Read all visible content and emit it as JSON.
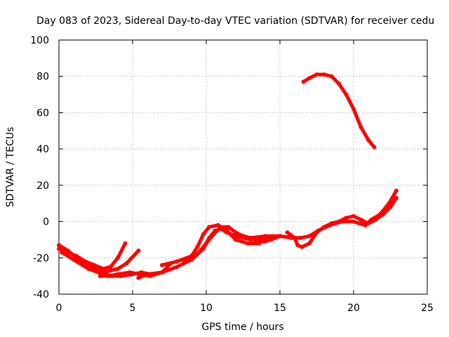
{
  "chart_data": {
    "type": "line",
    "title": "Day 083 of 2023, Sidereal Day-to-day VTEC variation (SDTVAR) for receiver cedu",
    "xlabel": "GPS time / hours",
    "ylabel": "SDTVAR / TECUs",
    "xlim": [
      0,
      25
    ],
    "ylim": [
      -40,
      100
    ],
    "xticks": [
      0,
      5,
      10,
      15,
      20,
      25
    ],
    "yticks": [
      -40,
      -20,
      0,
      20,
      40,
      60,
      80,
      100
    ],
    "grid": true,
    "color": "#ff0000",
    "series": [
      {
        "name": "s1",
        "x": [
          0.0,
          0.6,
          1.2,
          1.8,
          2.4,
          3.0,
          3.5,
          4.0,
          4.5
        ],
        "y": [
          -15,
          -17,
          -19,
          -22,
          -24,
          -26,
          -25,
          -20,
          -12
        ]
      },
      {
        "name": "s2",
        "x": [
          0.0,
          0.6,
          1.2,
          1.8,
          2.4,
          3.0,
          3.5,
          4.0,
          4.6,
          5.4
        ],
        "y": [
          -13,
          -16,
          -20,
          -23,
          -26,
          -28,
          -27,
          -26,
          -23,
          -16
        ]
      },
      {
        "name": "s3",
        "x": [
          0.2,
          1.0,
          2.0,
          3.0,
          3.6,
          4.2,
          5.0,
          5.6,
          6.2
        ],
        "y": [
          -17,
          -21,
          -26,
          -29,
          -30,
          -30,
          -29,
          -28,
          -29
        ]
      },
      {
        "name": "s4",
        "x": [
          2.8,
          3.4,
          4.0,
          4.8,
          5.5,
          6.2,
          7.0,
          7.6
        ],
        "y": [
          -30,
          -30,
          -29,
          -28,
          -29,
          -30,
          -28,
          -23
        ]
      },
      {
        "name": "s5",
        "x": [
          5.4,
          6.0,
          7.0,
          8.0,
          9.0,
          9.8,
          10.2,
          10.6,
          11.0,
          11.4,
          12.0,
          13.0,
          14.0,
          15.0,
          16.0
        ],
        "y": [
          -31,
          -29,
          -28,
          -25,
          -21,
          -15,
          -9,
          -5,
          -4,
          -6,
          -8,
          -10,
          -9,
          -8,
          -9
        ]
      },
      {
        "name": "s6",
        "x": [
          7.0,
          8.0,
          9.0,
          9.4,
          9.8,
          10.2,
          10.8,
          11.4,
          12.0,
          12.8,
          13.6
        ],
        "y": [
          -24,
          -22,
          -19,
          -14,
          -7,
          -3,
          -2,
          -5,
          -10,
          -12,
          -12
        ]
      },
      {
        "name": "s7",
        "x": [
          8.5,
          9.0,
          9.5,
          10.0,
          10.5,
          11.0,
          11.5,
          12.0,
          12.5,
          13.0,
          13.5,
          14.0,
          14.4,
          15.0
        ],
        "y": [
          -22,
          -20,
          -17,
          -12,
          -7,
          -3,
          -3,
          -6,
          -8,
          -9,
          -11,
          -11,
          -10,
          -8
        ]
      },
      {
        "name": "s8",
        "x": [
          12.0,
          13.0,
          14.0,
          15.0,
          15.8,
          16.4,
          17.0,
          17.6,
          18.4,
          19.2,
          20.0,
          20.4,
          20.8,
          21.2,
          21.8,
          22.4,
          22.9
        ],
        "y": [
          -7,
          -9,
          -8,
          -8,
          -9,
          -9,
          -8,
          -5,
          -2,
          0,
          0,
          -1,
          -2,
          1,
          4,
          10,
          17
        ]
      },
      {
        "name": "s9",
        "x": [
          15.5,
          16.0,
          16.2,
          16.5,
          17.0,
          17.5,
          18.0,
          18.5,
          19.0,
          19.5,
          20.0,
          20.5,
          21.0,
          21.5,
          22.0,
          22.5,
          22.9
        ],
        "y": [
          -6,
          -9,
          -13,
          -14,
          -12,
          -6,
          -3,
          -1,
          0,
          2,
          3,
          1,
          -1,
          1,
          4,
          8,
          13
        ]
      },
      {
        "name": "s10",
        "x": [
          16.6,
          17.0,
          17.5,
          18.0,
          18.5,
          19.0,
          19.5,
          20.0,
          20.5,
          21.0,
          21.4
        ],
        "y": [
          77,
          79,
          81,
          81,
          80,
          76,
          70,
          62,
          52,
          45,
          41
        ]
      }
    ]
  }
}
